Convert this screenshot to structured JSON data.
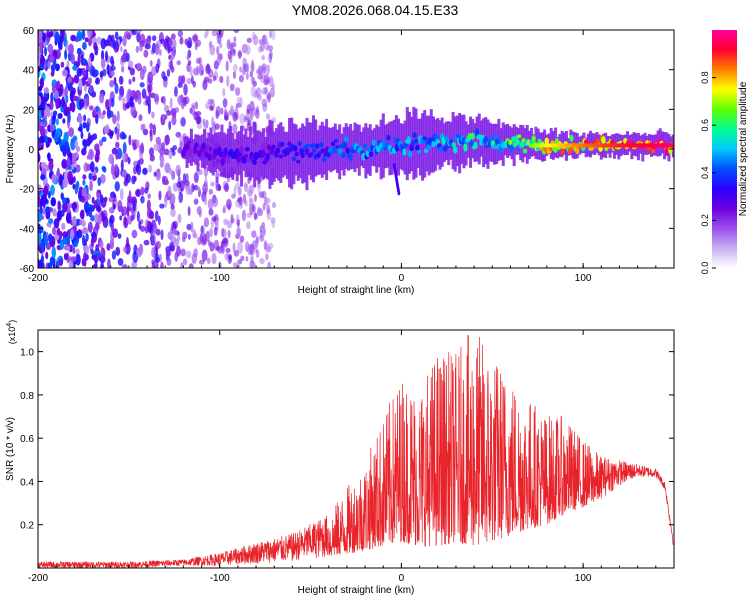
{
  "figure": {
    "title": "YM08.2026.068.04.15.E33"
  },
  "chart_data": [
    {
      "type": "heatmap",
      "xlabel": "Height of straight line (km)",
      "ylabel": "Frequency (Hz)",
      "xlim": [
        -200,
        150
      ],
      "ylim": [
        -60,
        60
      ],
      "xticks": [
        -200,
        -100,
        0,
        100
      ],
      "yticks": [
        -60,
        -40,
        -20,
        0,
        20,
        40,
        60
      ],
      "colorbar": {
        "label": "Normalized spectral amplitude",
        "range": [
          0,
          1
        ],
        "ticks": [
          "0.0",
          "0.2",
          "0.4",
          "0.6",
          "0.8"
        ],
        "tick_values": [
          0.0,
          0.2,
          0.4,
          0.6,
          0.8
        ],
        "colormap": [
          "#ffffff",
          "#c8b0f0",
          "#9b4ff0",
          "#6e00e0",
          "#2a00ff",
          "#0050ff",
          "#00c8ff",
          "#00ff90",
          "#60ff00",
          "#ffff00",
          "#ff8000",
          "#ff0030",
          "#ff00a0"
        ]
      },
      "description_points": {
        "noise_region_x": [
          -200,
          -80
        ],
        "signal_band": [
          {
            "x": -120,
            "center_hz": 0,
            "width_hz": 6,
            "amp": 0.25
          },
          {
            "x": -100,
            "center_hz": -2,
            "width_hz": 10,
            "amp": 0.3
          },
          {
            "x": -80,
            "center_hz": -4,
            "width_hz": 12,
            "amp": 0.3
          },
          {
            "x": -60,
            "center_hz": -2,
            "width_hz": 14,
            "amp": 0.35
          },
          {
            "x": -40,
            "center_hz": 0,
            "width_hz": 12,
            "amp": 0.4
          },
          {
            "x": -20,
            "center_hz": 0,
            "width_hz": 10,
            "amp": 0.45
          },
          {
            "x": 0,
            "center_hz": 2,
            "width_hz": 14,
            "amp": 0.45
          },
          {
            "x": 20,
            "center_hz": 3,
            "width_hz": 12,
            "amp": 0.5
          },
          {
            "x": 40,
            "center_hz": 4,
            "width_hz": 10,
            "amp": 0.55
          },
          {
            "x": 60,
            "center_hz": 3,
            "width_hz": 8,
            "amp": 0.6
          },
          {
            "x": 80,
            "center_hz": 2,
            "width_hz": 6,
            "amp": 0.75
          },
          {
            "x": 100,
            "center_hz": 2,
            "width_hz": 5,
            "amp": 0.85
          },
          {
            "x": 120,
            "center_hz": 2,
            "width_hz": 5,
            "amp": 0.9
          },
          {
            "x": 150,
            "center_hz": 2,
            "width_hz": 5,
            "amp": 0.95
          }
        ]
      }
    },
    {
      "type": "line",
      "xlabel": "Height of straight line (km)",
      "ylabel": "SNR (10 * v/v)",
      "y_multiplier": "(x10",
      "y_exponent": "4",
      "y_multiplier_close": ")",
      "xlim": [
        -200,
        150
      ],
      "ylim": [
        0,
        1.1
      ],
      "xticks": [
        -200,
        -100,
        0,
        100
      ],
      "yticks": [
        0.2,
        0.4,
        0.6,
        0.8,
        1.0
      ],
      "ytick_labels": [
        "0.2",
        "0.4",
        "0.6",
        "0.8",
        "1.0"
      ],
      "series": [
        {
          "name": "SNR",
          "color": "#e8232a",
          "envelope_x": [
            -200,
            -150,
            -120,
            -100,
            -80,
            -60,
            -40,
            -20,
            0,
            10,
            20,
            30,
            40,
            50,
            60,
            70,
            80,
            90,
            100,
            110,
            120,
            130,
            140,
            145,
            150
          ],
          "envelope_upper": [
            0.03,
            0.03,
            0.04,
            0.07,
            0.12,
            0.16,
            0.25,
            0.5,
            0.9,
            0.85,
            1.02,
            1.0,
            1.12,
            1.0,
            0.9,
            0.8,
            0.72,
            0.7,
            0.6,
            0.52,
            0.5,
            0.48,
            0.46,
            0.4,
            0.12
          ],
          "envelope_lower": [
            0.0,
            0.0,
            0.01,
            0.01,
            0.02,
            0.03,
            0.05,
            0.08,
            0.12,
            0.1,
            0.1,
            0.12,
            0.1,
            0.12,
            0.15,
            0.18,
            0.2,
            0.25,
            0.28,
            0.32,
            0.38,
            0.42,
            0.42,
            0.36,
            0.08
          ]
        }
      ]
    }
  ]
}
